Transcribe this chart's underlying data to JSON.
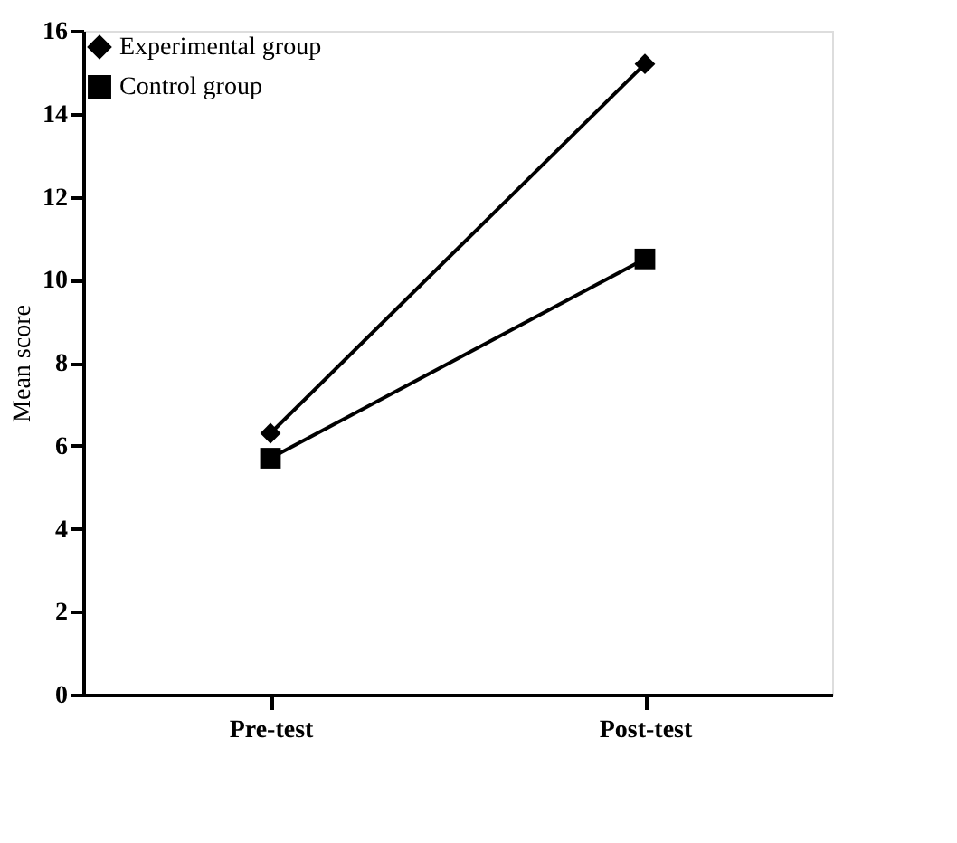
{
  "chart_data": {
    "type": "line",
    "ylabel": "Mean score",
    "categories": [
      "Pre-test",
      "Post-test"
    ],
    "series": [
      {
        "name": "Experimental group",
        "color": "#000000",
        "marker": "diamond",
        "values": [
          6.3,
          15.2
        ]
      },
      {
        "name": "Control group",
        "color": "#000000",
        "marker": "square",
        "values": [
          5.7,
          10.5
        ]
      }
    ],
    "ylim": [
      0,
      16
    ],
    "yticks": [
      0,
      2,
      4,
      6,
      8,
      10,
      12,
      14,
      16
    ],
    "grid": false,
    "legend": "top left",
    "line_style": "solid"
  }
}
